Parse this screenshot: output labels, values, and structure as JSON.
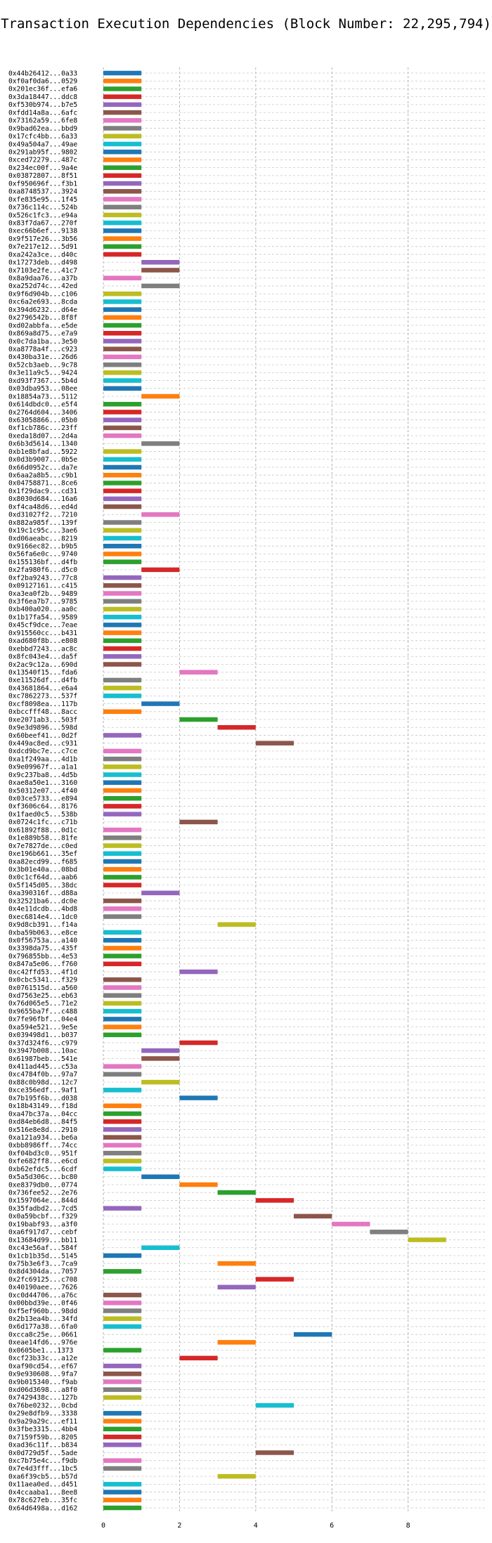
{
  "chart_data": {
    "type": "bar",
    "orientation": "horizontal",
    "title": "Transaction Execution Dependencies (Block Number: 22,295,794)",
    "xlabel": "",
    "ylabel": "",
    "xlim": [
      0,
      9.5
    ],
    "xticks": [
      0,
      2,
      4,
      6,
      8
    ],
    "grid": true,
    "legend": "none",
    "palette": [
      "#1f77b4",
      "#ff7f0e",
      "#2ca02c",
      "#d62728",
      "#9467bd",
      "#8c564b",
      "#e377c2",
      "#7f7f7f",
      "#bcbd22",
      "#17becf"
    ],
    "transactions": [
      {
        "label": "0x44b26412...0a33",
        "start": 0,
        "end": 1
      },
      {
        "label": "0xf0af0da6...0529",
        "start": 0,
        "end": 1
      },
      {
        "label": "0x201ec36f...efa6",
        "start": 0,
        "end": 1
      },
      {
        "label": "0x3da18447...ddc8",
        "start": 0,
        "end": 1
      },
      {
        "label": "0xf530b974...b7e5",
        "start": 0,
        "end": 1
      },
      {
        "label": "0xfdd14a8a...6afc",
        "start": 0,
        "end": 1
      },
      {
        "label": "0x73162a59...6fe8",
        "start": 0,
        "end": 1
      },
      {
        "label": "0x9bad62ea...bbd9",
        "start": 0,
        "end": 1
      },
      {
        "label": "0x17cfc4bb...6a33",
        "start": 0,
        "end": 1
      },
      {
        "label": "0x49a504a7...49ae",
        "start": 0,
        "end": 1
      },
      {
        "label": "0x291ab95f...9802",
        "start": 0,
        "end": 1
      },
      {
        "label": "0xced72279...487c",
        "start": 0,
        "end": 1
      },
      {
        "label": "0x234ec00f...9a4e",
        "start": 0,
        "end": 1
      },
      {
        "label": "0x03872807...8f51",
        "start": 0,
        "end": 1
      },
      {
        "label": "0xf950696f...f3b1",
        "start": 0,
        "end": 1
      },
      {
        "label": "0xa8748537...3924",
        "start": 0,
        "end": 1
      },
      {
        "label": "0xfe835e95...1f45",
        "start": 0,
        "end": 1
      },
      {
        "label": "0x736c114c...524b",
        "start": 0,
        "end": 1
      },
      {
        "label": "0x526c1fc3...e94a",
        "start": 0,
        "end": 1
      },
      {
        "label": "0x83f7da67...270f",
        "start": 0,
        "end": 1
      },
      {
        "label": "0xec66b6ef...9138",
        "start": 0,
        "end": 1
      },
      {
        "label": "0x9f517e26...3b56",
        "start": 0,
        "end": 1
      },
      {
        "label": "0x7e217e12...5d91",
        "start": 0,
        "end": 1
      },
      {
        "label": "0xa242a3ce...d40c",
        "start": 0,
        "end": 1
      },
      {
        "label": "0x17273deb...d498",
        "start": 1,
        "end": 2
      },
      {
        "label": "0x7103e2fe...41c7",
        "start": 1,
        "end": 2
      },
      {
        "label": "0x8a9daa76...a37b",
        "start": 0,
        "end": 1
      },
      {
        "label": "0xa252d74c...42ed",
        "start": 1,
        "end": 2
      },
      {
        "label": "0x9f6d904b...c106",
        "start": 0,
        "end": 1
      },
      {
        "label": "0xc6a2e693...8cda",
        "start": 0,
        "end": 1
      },
      {
        "label": "0x394d6232...d64e",
        "start": 0,
        "end": 1
      },
      {
        "label": "0x2796542b...8f8f",
        "start": 0,
        "end": 1
      },
      {
        "label": "0xd02abbfa...e5de",
        "start": 0,
        "end": 1
      },
      {
        "label": "0x869a8d75...e7a9",
        "start": 0,
        "end": 1
      },
      {
        "label": "0x0c7da1ba...3e50",
        "start": 0,
        "end": 1
      },
      {
        "label": "0xa8778a4f...c923",
        "start": 0,
        "end": 1
      },
      {
        "label": "0x430ba31e...26d6",
        "start": 0,
        "end": 1
      },
      {
        "label": "0x52cb3aeb...9c78",
        "start": 0,
        "end": 1
      },
      {
        "label": "0x3e11a9c5...9424",
        "start": 0,
        "end": 1
      },
      {
        "label": "0xd93f7367...5b4d",
        "start": 0,
        "end": 1
      },
      {
        "label": "0x03dba953...08ee",
        "start": 0,
        "end": 1
      },
      {
        "label": "0x18854a73...5112",
        "start": 1,
        "end": 2
      },
      {
        "label": "0x614dbdc0...e5f4",
        "start": 0,
        "end": 1
      },
      {
        "label": "0x2764d604...3406",
        "start": 0,
        "end": 1
      },
      {
        "label": "0x63058866...05b0",
        "start": 0,
        "end": 1
      },
      {
        "label": "0xf1cb786c...23ff",
        "start": 0,
        "end": 1
      },
      {
        "label": "0xeda18d07...2d4a",
        "start": 0,
        "end": 1
      },
      {
        "label": "0x6b3d5614...1340",
        "start": 1,
        "end": 2
      },
      {
        "label": "0xb1e8bfad...5922",
        "start": 0,
        "end": 1
      },
      {
        "label": "0x0d3b9007...0b5e",
        "start": 0,
        "end": 1
      },
      {
        "label": "0x66d0952c...da7e",
        "start": 0,
        "end": 1
      },
      {
        "label": "0x6aa2a8b5...c9b1",
        "start": 0,
        "end": 1
      },
      {
        "label": "0x04758871...8ce6",
        "start": 0,
        "end": 1
      },
      {
        "label": "0x1f29dac9...cd31",
        "start": 0,
        "end": 1
      },
      {
        "label": "0x8030d684...16a6",
        "start": 0,
        "end": 1
      },
      {
        "label": "0xf4ca48d6...ed4d",
        "start": 0,
        "end": 1
      },
      {
        "label": "0xd31027f2...7210",
        "start": 1,
        "end": 2
      },
      {
        "label": "0x882a985f...139f",
        "start": 0,
        "end": 1
      },
      {
        "label": "0x19c1c95c...3ae6",
        "start": 0,
        "end": 1
      },
      {
        "label": "0xd06aeabc...8219",
        "start": 0,
        "end": 1
      },
      {
        "label": "0x9166ec82...b9b5",
        "start": 0,
        "end": 1
      },
      {
        "label": "0x56fa6e0c...9740",
        "start": 0,
        "end": 1
      },
      {
        "label": "0x155136bf...d4fb",
        "start": 0,
        "end": 1
      },
      {
        "label": "0x2fa980f6...d5c0",
        "start": 1,
        "end": 2
      },
      {
        "label": "0xf2ba9243...77c8",
        "start": 0,
        "end": 1
      },
      {
        "label": "0x09127161...c415",
        "start": 0,
        "end": 1
      },
      {
        "label": "0xa3ea0f2b...9489",
        "start": 0,
        "end": 1
      },
      {
        "label": "0x3f6ea7b7...9785",
        "start": 0,
        "end": 1
      },
      {
        "label": "0xb400a020...aa0c",
        "start": 0,
        "end": 1
      },
      {
        "label": "0x1b17fa54...9589",
        "start": 0,
        "end": 1
      },
      {
        "label": "0x45cf9dce...7eae",
        "start": 0,
        "end": 1
      },
      {
        "label": "0x915560cc...b431",
        "start": 0,
        "end": 1
      },
      {
        "label": "0xad680f8b...e808",
        "start": 0,
        "end": 1
      },
      {
        "label": "0xebbd7243...ac8c",
        "start": 0,
        "end": 1
      },
      {
        "label": "0x8fc043e4...da5f",
        "start": 0,
        "end": 1
      },
      {
        "label": "0x2ac9c12a...690d",
        "start": 0,
        "end": 1
      },
      {
        "label": "0x13540f15...fda6",
        "start": 2,
        "end": 3
      },
      {
        "label": "0xe11526df...d4fb",
        "start": 0,
        "end": 1
      },
      {
        "label": "0x43681864...e6a4",
        "start": 0,
        "end": 1
      },
      {
        "label": "0xc7862273...537f",
        "start": 0,
        "end": 1
      },
      {
        "label": "0xcf8098ea...117b",
        "start": 1,
        "end": 2
      },
      {
        "label": "0xbccfff48...8acc",
        "start": 0,
        "end": 1
      },
      {
        "label": "0xe2071ab3...503f",
        "start": 2,
        "end": 3
      },
      {
        "label": "0x9e3d9896...598d",
        "start": 3,
        "end": 4
      },
      {
        "label": "0x60beef41...0d2f",
        "start": 0,
        "end": 1
      },
      {
        "label": "0x449ac8ed...c931",
        "start": 4,
        "end": 5
      },
      {
        "label": "0xdcd9bc7e...c7ce",
        "start": 0,
        "end": 1
      },
      {
        "label": "0xa1f249aa...4d1b",
        "start": 0,
        "end": 1
      },
      {
        "label": "0x9e09967f...a1a1",
        "start": 0,
        "end": 1
      },
      {
        "label": "0x9c237ba8...4d5b",
        "start": 0,
        "end": 1
      },
      {
        "label": "0xae8a50e1...3160",
        "start": 0,
        "end": 1
      },
      {
        "label": "0x50312e07...4f40",
        "start": 0,
        "end": 1
      },
      {
        "label": "0x03ce5733...e894",
        "start": 0,
        "end": 1
      },
      {
        "label": "0xf3606c64...8176",
        "start": 0,
        "end": 1
      },
      {
        "label": "0x1faed0c5...538b",
        "start": 0,
        "end": 1
      },
      {
        "label": "0x0724c1fc...c71b",
        "start": 2,
        "end": 3
      },
      {
        "label": "0x61892f88...0d1c",
        "start": 0,
        "end": 1
      },
      {
        "label": "0x1e889b58...81fe",
        "start": 0,
        "end": 1
      },
      {
        "label": "0x7e7827de...c0ed",
        "start": 0,
        "end": 1
      },
      {
        "label": "0xe196b661...35ef",
        "start": 0,
        "end": 1
      },
      {
        "label": "0xa82ecd99...f685",
        "start": 0,
        "end": 1
      },
      {
        "label": "0x3b01e40a...08bd",
        "start": 0,
        "end": 1
      },
      {
        "label": "0x0c1cf64d...aab6",
        "start": 0,
        "end": 1
      },
      {
        "label": "0x5f145d05...38dc",
        "start": 0,
        "end": 1
      },
      {
        "label": "0xa390316f...d88a",
        "start": 1,
        "end": 2
      },
      {
        "label": "0x32521ba6...dc0e",
        "start": 0,
        "end": 1
      },
      {
        "label": "0x4e11dcdb...4bd8",
        "start": 0,
        "end": 1
      },
      {
        "label": "0xec6814e4...1dc0",
        "start": 0,
        "end": 1
      },
      {
        "label": "0x9d8cb391...f14a",
        "start": 3,
        "end": 4
      },
      {
        "label": "0xba59b063...e8ce",
        "start": 0,
        "end": 1
      },
      {
        "label": "0x0f56753a...a140",
        "start": 0,
        "end": 1
      },
      {
        "label": "0x3398da75...435f",
        "start": 0,
        "end": 1
      },
      {
        "label": "0x796855bb...4e53",
        "start": 0,
        "end": 1
      },
      {
        "label": "0x847a5e06...f760",
        "start": 0,
        "end": 1
      },
      {
        "label": "0xc42ffd53...4f1d",
        "start": 2,
        "end": 3
      },
      {
        "label": "0x0cbc5341...f329",
        "start": 0,
        "end": 1
      },
      {
        "label": "0x0761515d...a560",
        "start": 0,
        "end": 1
      },
      {
        "label": "0xd7563e25...eb63",
        "start": 0,
        "end": 1
      },
      {
        "label": "0x76d065e5...71e2",
        "start": 0,
        "end": 1
      },
      {
        "label": "0x9655ba7f...c488",
        "start": 0,
        "end": 1
      },
      {
        "label": "0x7fe96fbf...04e4",
        "start": 0,
        "end": 1
      },
      {
        "label": "0xa594e521...9e5e",
        "start": 0,
        "end": 1
      },
      {
        "label": "0x039498d1...b037",
        "start": 0,
        "end": 1
      },
      {
        "label": "0x37d324f6...c979",
        "start": 2,
        "end": 3
      },
      {
        "label": "0x3947b008...10ac",
        "start": 1,
        "end": 2
      },
      {
        "label": "0x61987beb...541e",
        "start": 1,
        "end": 2
      },
      {
        "label": "0x411ad445...c53a",
        "start": 0,
        "end": 1
      },
      {
        "label": "0xc4784f0b...97a7",
        "start": 0,
        "end": 1
      },
      {
        "label": "0x88c0b98d...12c7",
        "start": 1,
        "end": 2
      },
      {
        "label": "0xce356edf...9af1",
        "start": 0,
        "end": 1
      },
      {
        "label": "0x7b195f6b...d038",
        "start": 2,
        "end": 3
      },
      {
        "label": "0x18b43149...f18d",
        "start": 0,
        "end": 1
      },
      {
        "label": "0xa47bc37a...04cc",
        "start": 0,
        "end": 1
      },
      {
        "label": "0xd84eb6d8...84f5",
        "start": 0,
        "end": 1
      },
      {
        "label": "0x516e8e8d...2910",
        "start": 0,
        "end": 1
      },
      {
        "label": "0xa121a934...be6a",
        "start": 0,
        "end": 1
      },
      {
        "label": "0xbb8986ff...74cc",
        "start": 0,
        "end": 1
      },
      {
        "label": "0xf04bd3c0...951f",
        "start": 0,
        "end": 1
      },
      {
        "label": "0xfe682ff8...e6cd",
        "start": 0,
        "end": 1
      },
      {
        "label": "0xb62efdc5...6cdf",
        "start": 0,
        "end": 1
      },
      {
        "label": "0x5a5d306c...bc80",
        "start": 1,
        "end": 2
      },
      {
        "label": "0xe8379db0...0774",
        "start": 2,
        "end": 3
      },
      {
        "label": "0x736fee52...2e76",
        "start": 3,
        "end": 4
      },
      {
        "label": "0x1597064e...844d",
        "start": 4,
        "end": 5
      },
      {
        "label": "0x35fadbd2...7cd5",
        "start": 0,
        "end": 1
      },
      {
        "label": "0x0a59bcbf...f329",
        "start": 5,
        "end": 6
      },
      {
        "label": "0x19babf93...a3f0",
        "start": 6,
        "end": 7
      },
      {
        "label": "0xa6f917d7...cebf",
        "start": 7,
        "end": 8
      },
      {
        "label": "0x13684d99...bb11",
        "start": 8,
        "end": 9
      },
      {
        "label": "0xc43e56af...584f",
        "start": 1,
        "end": 2
      },
      {
        "label": "0x1cb1b35d...5145",
        "start": 0,
        "end": 1
      },
      {
        "label": "0x75b3e6f3...7ca9",
        "start": 3,
        "end": 4
      },
      {
        "label": "0x8d4304da...7057",
        "start": 0,
        "end": 1
      },
      {
        "label": "0x2fc69125...c708",
        "start": 4,
        "end": 5
      },
      {
        "label": "0x40190aee...7626",
        "start": 3,
        "end": 4
      },
      {
        "label": "0xc0d44706...a76c",
        "start": 0,
        "end": 1
      },
      {
        "label": "0x00bbd39e...0f46",
        "start": 0,
        "end": 1
      },
      {
        "label": "0xf5ef960b...98dd",
        "start": 0,
        "end": 1
      },
      {
        "label": "0x2b13ea4b...34fd",
        "start": 0,
        "end": 1
      },
      {
        "label": "0x6d177a38...6fa0",
        "start": 0,
        "end": 1
      },
      {
        "label": "0xcca8c25e...0661",
        "start": 5,
        "end": 6
      },
      {
        "label": "0xeae14fd6...976e",
        "start": 3,
        "end": 4
      },
      {
        "label": "0x0605be1...1373",
        "start": 0,
        "end": 1
      },
      {
        "label": "0xcf23b33c...a12e",
        "start": 2,
        "end": 3
      },
      {
        "label": "0xaf90cd54...ef67",
        "start": 0,
        "end": 1
      },
      {
        "label": "0x9e930608...9fa7",
        "start": 0,
        "end": 1
      },
      {
        "label": "0x9b015340...f9ab",
        "start": 0,
        "end": 1
      },
      {
        "label": "0xd06d3698...a8f0",
        "start": 0,
        "end": 1
      },
      {
        "label": "0x7429438c...127b",
        "start": 0,
        "end": 1
      },
      {
        "label": "0x76be0232...0cbd",
        "start": 4,
        "end": 5
      },
      {
        "label": "0x29e8dfb9...3338",
        "start": 0,
        "end": 1
      },
      {
        "label": "0x9a29a29c...ef11",
        "start": 0,
        "end": 1
      },
      {
        "label": "0x3fbe3315...4bb4",
        "start": 0,
        "end": 1
      },
      {
        "label": "0x7159f59b...8205",
        "start": 0,
        "end": 1
      },
      {
        "label": "0xad36c11f...b834",
        "start": 0,
        "end": 1
      },
      {
        "label": "0x0d729d5f...5ade",
        "start": 4,
        "end": 5
      },
      {
        "label": "0xc7b75e4c...f9db",
        "start": 0,
        "end": 1
      },
      {
        "label": "0x7e4d3fff...1bc5",
        "start": 0,
        "end": 1
      },
      {
        "label": "0xa6f39cb5...b57d",
        "start": 3,
        "end": 4
      },
      {
        "label": "0x11aea0ed...d451",
        "start": 0,
        "end": 1
      },
      {
        "label": "0x4ccaaba1...8ee8",
        "start": 0,
        "end": 1
      },
      {
        "label": "0x78c627eb...35fc",
        "start": 0,
        "end": 1
      },
      {
        "label": "0x64d6498a...d162",
        "start": 0,
        "end": 1
      }
    ]
  }
}
